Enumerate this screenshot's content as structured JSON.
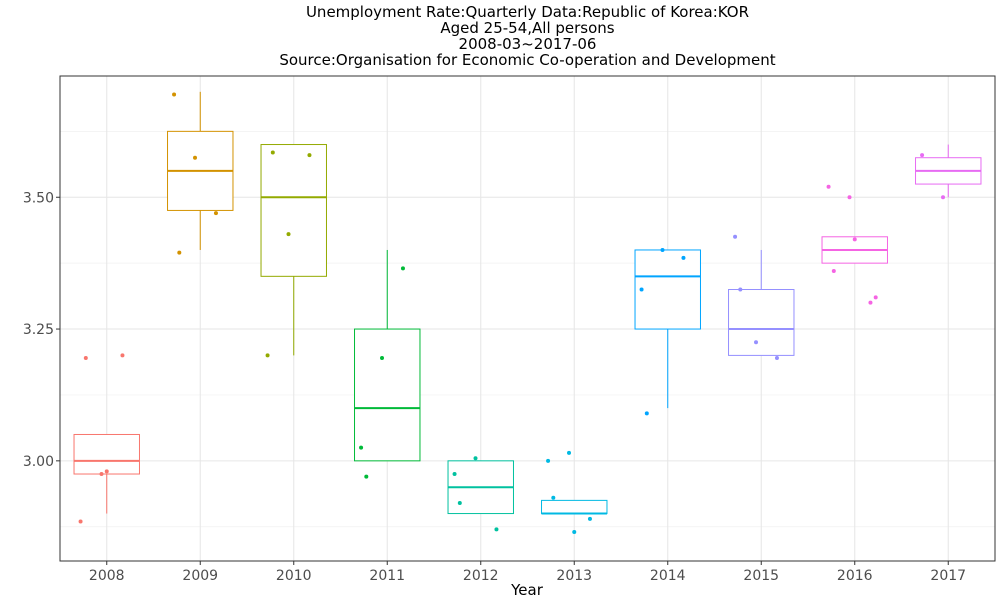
{
  "chart_data": {
    "type": "boxplot",
    "title": "Unemployment Rate:Quarterly Data:Republic of Korea:KOR",
    "subtitle_lines": [
      "Aged 25-54,All persons",
      "2008-03~2017-06",
      "Source:Organisation for Economic Co-operation and Development"
    ],
    "xlabel": "Year",
    "ylabel": "",
    "ylim": [
      2.81,
      3.73
    ],
    "yticks": [
      3.0,
      3.25,
      3.5
    ],
    "ytick_labels": [
      "3.00",
      "3.25",
      "3.50"
    ],
    "grid": true,
    "legend": "none",
    "categories": [
      "2008",
      "2009",
      "2010",
      "2011",
      "2012",
      "2013",
      "2014",
      "2015",
      "2016",
      "2017"
    ],
    "colors": [
      "#F8766D",
      "#D39200",
      "#93AA00",
      "#00BA38",
      "#00C19F",
      "#00B9E3",
      "#00A5FF",
      "#9590FF",
      "#F564E3",
      "#E76BF3"
    ],
    "boxes": [
      {
        "year": "2008",
        "min": 2.9,
        "q1": 2.975,
        "median": 3.0,
        "q3": 3.05,
        "max": 3.05,
        "points": [
          2.885,
          2.975,
          3.2,
          3.195,
          2.98
        ]
      },
      {
        "year": "2009",
        "min": 3.4,
        "q1": 3.475,
        "median": 3.55,
        "q3": 3.625,
        "max": 3.7,
        "points": [
          3.695,
          3.575,
          3.47,
          3.395
        ]
      },
      {
        "year": "2010",
        "min": 3.2,
        "q1": 3.35,
        "median": 3.5,
        "q3": 3.6,
        "max": 3.6,
        "points": [
          3.2,
          3.43,
          3.58,
          3.585
        ]
      },
      {
        "year": "2011",
        "min": 3.0,
        "q1": 3.0,
        "median": 3.1,
        "q3": 3.25,
        "max": 3.4,
        "points": [
          3.025,
          3.195,
          3.365,
          2.97
        ]
      },
      {
        "year": "2012",
        "min": 2.9,
        "q1": 2.9,
        "median": 2.95,
        "q3": 3.0,
        "max": 3.0,
        "points": [
          2.975,
          3.005,
          2.87,
          2.92
        ]
      },
      {
        "year": "2013",
        "min": 2.9,
        "q1": 2.9,
        "median": 2.9,
        "q3": 2.925,
        "max": 2.925,
        "points": [
          3.0,
          3.015,
          2.89,
          2.93,
          2.865
        ]
      },
      {
        "year": "2014",
        "min": 3.1,
        "q1": 3.25,
        "median": 3.35,
        "q3": 3.4,
        "max": 3.4,
        "points": [
          3.325,
          3.4,
          3.385,
          3.09
        ]
      },
      {
        "year": "2015",
        "min": 3.2,
        "q1": 3.2,
        "median": 3.25,
        "q3": 3.325,
        "max": 3.4,
        "points": [
          3.425,
          3.225,
          3.195,
          3.325
        ]
      },
      {
        "year": "2016",
        "min": 3.375,
        "q1": 3.375,
        "median": 3.4,
        "q3": 3.425,
        "max": 3.425,
        "points": [
          3.52,
          3.5,
          3.3,
          3.36,
          3.42,
          3.31
        ]
      },
      {
        "year": "2017",
        "min": 3.5,
        "q1": 3.525,
        "median": 3.55,
        "q3": 3.575,
        "max": 3.6,
        "points": [
          3.58,
          3.5
        ]
      }
    ]
  }
}
